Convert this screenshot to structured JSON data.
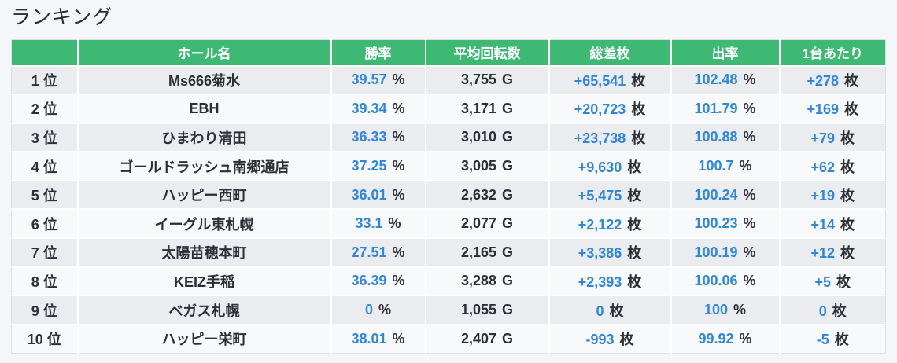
{
  "page": {
    "title": "ランキング"
  },
  "colors": {
    "header_green": "#3db974",
    "value_blue": "#2e86de",
    "dark_text": "#2b3036",
    "row_odd": "#ebecef",
    "row_even": "#f8f9fb",
    "page_bg": "#f5f6f9",
    "table_border": "#dcdee3"
  },
  "table": {
    "columns": [
      {
        "key": "rank",
        "label": "",
        "unit": "位",
        "value_color": "dark"
      },
      {
        "key": "hall",
        "label": "ホール名",
        "unit": "",
        "value_color": "dark"
      },
      {
        "key": "win_rate",
        "label": "勝率",
        "unit": "%",
        "value_color": "blue"
      },
      {
        "key": "avg_spins",
        "label": "平均回転数",
        "unit": "G",
        "value_color": "dark"
      },
      {
        "key": "total_diff",
        "label": "総差枚",
        "unit": "枚",
        "value_color": "blue"
      },
      {
        "key": "payout",
        "label": "出率",
        "unit": "%",
        "value_color": "blue"
      },
      {
        "key": "per_machine",
        "label": "1台あたり",
        "unit": "枚",
        "value_color": "blue"
      }
    ],
    "rows": [
      {
        "rank": "1",
        "hall": "Ms666菊水",
        "win_rate": "39.57",
        "avg_spins": "3,755",
        "total_diff": "+65,541",
        "payout": "102.48",
        "per_machine": "+278"
      },
      {
        "rank": "2",
        "hall": "EBH",
        "win_rate": "39.34",
        "avg_spins": "3,171",
        "total_diff": "+20,723",
        "payout": "101.79",
        "per_machine": "+169"
      },
      {
        "rank": "3",
        "hall": "ひまわり清田",
        "win_rate": "36.33",
        "avg_spins": "3,010",
        "total_diff": "+23,738",
        "payout": "100.88",
        "per_machine": "+79"
      },
      {
        "rank": "4",
        "hall": "ゴールドラッシュ南郷通店",
        "win_rate": "37.25",
        "avg_spins": "3,005",
        "total_diff": "+9,630",
        "payout": "100.7",
        "per_machine": "+62"
      },
      {
        "rank": "5",
        "hall": "ハッピー西町",
        "win_rate": "36.01",
        "avg_spins": "2,632",
        "total_diff": "+5,475",
        "payout": "100.24",
        "per_machine": "+19"
      },
      {
        "rank": "6",
        "hall": "イーグル東札幌",
        "win_rate": "33.1",
        "avg_spins": "2,077",
        "total_diff": "+2,122",
        "payout": "100.23",
        "per_machine": "+14"
      },
      {
        "rank": "7",
        "hall": "太陽苗穂本町",
        "win_rate": "27.51",
        "avg_spins": "2,165",
        "total_diff": "+3,386",
        "payout": "100.19",
        "per_machine": "+12"
      },
      {
        "rank": "8",
        "hall": "KEIZ手稲",
        "win_rate": "36.39",
        "avg_spins": "3,288",
        "total_diff": "+2,393",
        "payout": "100.06",
        "per_machine": "+5"
      },
      {
        "rank": "9",
        "hall": "ベガス札幌",
        "win_rate": "0",
        "avg_spins": "1,055",
        "total_diff": "0",
        "payout": "100",
        "per_machine": "0"
      },
      {
        "rank": "10",
        "hall": "ハッピー栄町",
        "win_rate": "38.01",
        "avg_spins": "2,407",
        "total_diff": "-993",
        "payout": "99.92",
        "per_machine": "-5"
      }
    ]
  }
}
